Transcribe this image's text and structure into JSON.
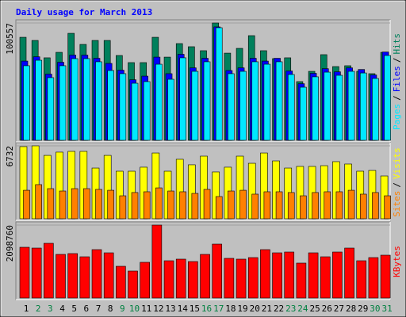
{
  "chart_data": [
    {
      "type": "bar",
      "title": "Daily usage for March 2013",
      "categories": [
        "1",
        "2",
        "3",
        "4",
        "5",
        "6",
        "7",
        "8",
        "9",
        "10",
        "11",
        "12",
        "13",
        "14",
        "15",
        "16",
        "17",
        "18",
        "19",
        "20",
        "21",
        "22",
        "23",
        "24",
        "25",
        "26",
        "27",
        "28",
        "29",
        "30",
        "31"
      ],
      "category_colors": [
        "#000000",
        "#008040",
        "#008040",
        "#000000",
        "#000000",
        "#000000",
        "#000000",
        "#000000",
        "#008040",
        "#008040",
        "#000000",
        "#000000",
        "#000000",
        "#000000",
        "#000000",
        "#008040",
        "#008040",
        "#000000",
        "#000000",
        "#000000",
        "#000000",
        "#000000",
        "#008040",
        "#008040",
        "#000000",
        "#000000",
        "#000000",
        "#000000",
        "#000000",
        "#008040",
        "#008040"
      ],
      "legend_separator": "/",
      "ylim": [
        0,
        100557
      ],
      "yticks": [
        100557
      ],
      "series": [
        {
          "name": "Hits",
          "color": "#00805c",
          "values": [
            88300,
            85600,
            70700,
            75400,
            91700,
            82200,
            85600,
            85600,
            72700,
            66600,
            66600,
            88300,
            71300,
            82900,
            80200,
            76800,
            100557,
            74700,
            78800,
            89700,
            76800,
            70000,
            70700,
            50300,
            59100,
            73400,
            63200,
            63900,
            59100,
            57100,
            75400
          ]
        },
        {
          "name": "Files",
          "color": "#0000ff",
          "values": [
            67900,
            71600,
            56700,
            66900,
            73000,
            73000,
            70300,
            65900,
            60100,
            51900,
            55000,
            71300,
            57100,
            73700,
            62100,
            70300,
            97200,
            59800,
            62100,
            70300,
            67900,
            70300,
            59400,
            48500,
            57400,
            61400,
            58700,
            62100,
            60700,
            56000,
            75700
          ]
        },
        {
          "name": "Pages",
          "color": "#00e8ff",
          "values": [
            63900,
            68600,
            53700,
            63900,
            70000,
            70000,
            67300,
            59800,
            57100,
            48900,
            50300,
            65200,
            52300,
            70700,
            59100,
            67300,
            96500,
            57100,
            59100,
            67300,
            65200,
            67300,
            56400,
            45500,
            54400,
            58400,
            55700,
            59100,
            57700,
            53000,
            72700
          ]
        }
      ]
    },
    {
      "type": "bar",
      "legend_separator": "/",
      "ylim": [
        0,
        6732
      ],
      "yticks": [
        6732
      ],
      "series": [
        {
          "name": "Visits",
          "color": "#ffff00",
          "values": [
            6660,
            6732,
            5850,
            6150,
            6220,
            6220,
            4680,
            5850,
            4390,
            4390,
            4760,
            6070,
            4390,
            5490,
            4980,
            5780,
            4320,
            4760,
            5780,
            5120,
            6070,
            5340,
            4680,
            4830,
            4830,
            4900,
            5270,
            5050,
            4390,
            4460,
            3950
          ]
        },
        {
          "name": "Sites",
          "color": "#ff8000",
          "values": [
            2630,
            3150,
            2780,
            2560,
            2780,
            2780,
            2710,
            2630,
            2120,
            2420,
            2490,
            2850,
            2560,
            2490,
            2340,
            2710,
            2050,
            2560,
            2630,
            2270,
            2490,
            2490,
            2420,
            2120,
            2420,
            2490,
            2490,
            2630,
            2270,
            2420,
            2120
          ]
        }
      ]
    },
    {
      "type": "bar",
      "ylim": [
        0,
        2098760
      ],
      "yticks": [
        2098760
      ],
      "series": [
        {
          "name": "KBytes",
          "color": "#ff0000",
          "values": [
            1460000,
            1437000,
            1574000,
            1255000,
            1278000,
            1186000,
            1392000,
            1300000,
            912500,
            775600,
            1027000,
            2098760,
            1072000,
            1118000,
            1049000,
            1255000,
            1551000,
            1141000,
            1118000,
            1163000,
            1392000,
            1300000,
            1323000,
            1004000,
            1300000,
            1186000,
            1323000,
            1437000,
            1072000,
            1163000,
            1232000
          ]
        }
      ]
    }
  ]
}
